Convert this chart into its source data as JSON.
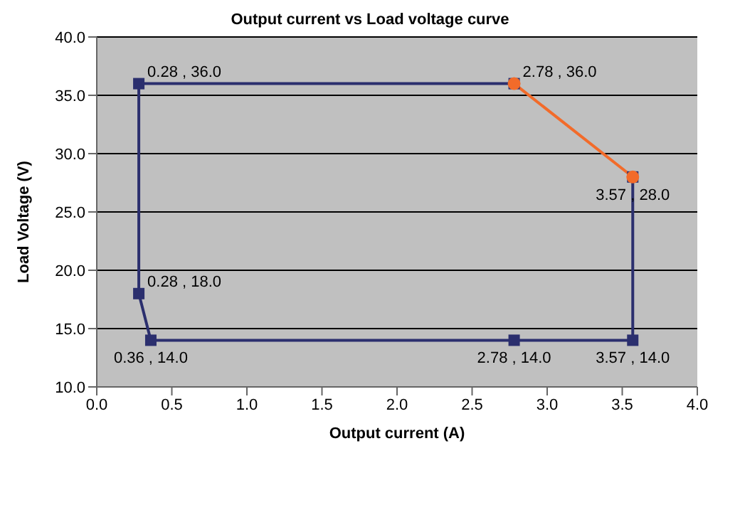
{
  "chart_data": {
    "type": "line",
    "title": "Output current vs Load voltage curve",
    "xlabel": "Output current (A)",
    "ylabel": "Load Voltage (V)",
    "series": [
      {
        "color": "#2b2f6e",
        "marker": "square",
        "x": [
          3.57,
          3.57,
          2.78,
          0.36,
          0.28,
          0.28,
          2.78
        ],
        "values": [
          28.0,
          14.0,
          14.0,
          14.0,
          18.0,
          36.0,
          36.0
        ],
        "value_labels": [
          null,
          "3.57 , 14.0",
          "2.78 , 14.0",
          "0.36 , 14.0",
          "0.28 , 18.0",
          "0.28 , 36.0",
          null
        ]
      },
      {
        "color": "#f26b2a",
        "marker": "circle",
        "x": [
          2.78,
          3.57
        ],
        "values": [
          36.0,
          28.0
        ],
        "value_labels": [
          "2.78 , 36.0",
          "3.57 , 28.0"
        ]
      }
    ],
    "xlim": [
      0,
      4
    ],
    "xticks": [
      {
        "value": 0,
        "label": "0.0"
      },
      {
        "value": 0.5,
        "label": "0.5"
      },
      {
        "value": 1,
        "label": "1.0"
      },
      {
        "value": 1.5,
        "label": "1.5"
      },
      {
        "value": 2,
        "label": "2.0"
      },
      {
        "value": 2.5,
        "label": "2.5"
      },
      {
        "value": 3,
        "label": "3.0"
      },
      {
        "value": 3.5,
        "label": "3.5"
      },
      {
        "value": 4,
        "label": "4.0"
      }
    ],
    "ylim": [
      10,
      40
    ],
    "yticks": [
      {
        "value": 10,
        "label": "10.0"
      },
      {
        "value": 15,
        "label": "15.0"
      },
      {
        "value": 20,
        "label": "20.0"
      },
      {
        "value": 25,
        "label": "25.0"
      },
      {
        "value": 30,
        "label": "30.0"
      },
      {
        "value": 35,
        "label": "35.0"
      },
      {
        "value": 40,
        "label": "40.0"
      }
    ],
    "grid": "y"
  }
}
